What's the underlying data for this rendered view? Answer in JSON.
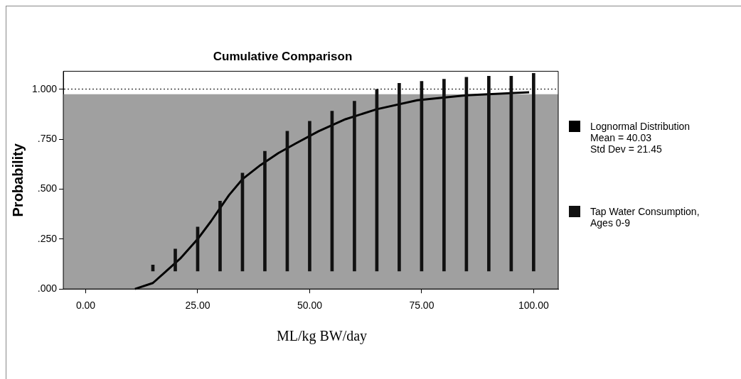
{
  "chart_data": {
    "type": "line",
    "title": "Cumulative Comparison",
    "xlabel": "ML/kg BW/day",
    "ylabel": "Probability",
    "xlim": [
      -5,
      105.5
    ],
    "ylim": [
      0,
      1.09
    ],
    "xticks": [
      {
        "value": 0,
        "label": "0.00"
      },
      {
        "value": 25,
        "label": "25.00"
      },
      {
        "value": 50,
        "label": "50.00"
      },
      {
        "value": 75,
        "label": "75.00"
      },
      {
        "value": 100,
        "label": "100.00"
      }
    ],
    "yticks": [
      {
        "value": 0,
        "label": ".000"
      },
      {
        "value": 0.25,
        "label": ".250"
      },
      {
        "value": 0.5,
        "label": ".500"
      },
      {
        "value": 0.75,
        "label": ".750"
      },
      {
        "value": 1,
        "label": "1.000"
      }
    ],
    "grid": "y",
    "legend": "right",
    "marker": "none",
    "bands": [
      {
        "axis": "y",
        "from": 0,
        "to": 0.975,
        "color": "#a0a0a0"
      }
    ],
    "series": [
      {
        "name": "Lognormal Distribution",
        "color": "#000000",
        "x": [
          11,
          15,
          18,
          21,
          25,
          28,
          32,
          35,
          39,
          43,
          47,
          52,
          58,
          65,
          74,
          85,
          99
        ],
        "values": [
          0,
          0.03,
          0.09,
          0.15,
          0.25,
          0.34,
          0.47,
          0.55,
          0.62,
          0.68,
          0.73,
          0.79,
          0.85,
          0.9,
          0.945,
          0.97,
          0.985
        ]
      },
      {
        "name": "Tap Water Consumption, Ages 0-9",
        "type": "bar",
        "color": "#111111",
        "x": [
          15,
          20,
          25,
          30,
          35,
          40,
          45,
          50,
          55,
          60,
          65,
          70,
          75,
          80,
          85,
          90,
          95,
          100
        ],
        "base": [
          0.09,
          0.09,
          0.09,
          0.09,
          0.09,
          0.09,
          0.09,
          0.09,
          0.09,
          0.09,
          0.09,
          0.09,
          0.09,
          0.09,
          0.09,
          0.09,
          0.09,
          0.09
        ],
        "values": [
          0.03,
          0.11,
          0.22,
          0.35,
          0.49,
          0.6,
          0.7,
          0.75,
          0.8,
          0.85,
          0.91,
          0.94,
          0.95,
          0.96,
          0.97,
          0.975,
          0.975,
          0.99
        ]
      }
    ],
    "annotations": [
      "Mean = 40.03",
      "Std Dev = 21.45"
    ]
  }
}
